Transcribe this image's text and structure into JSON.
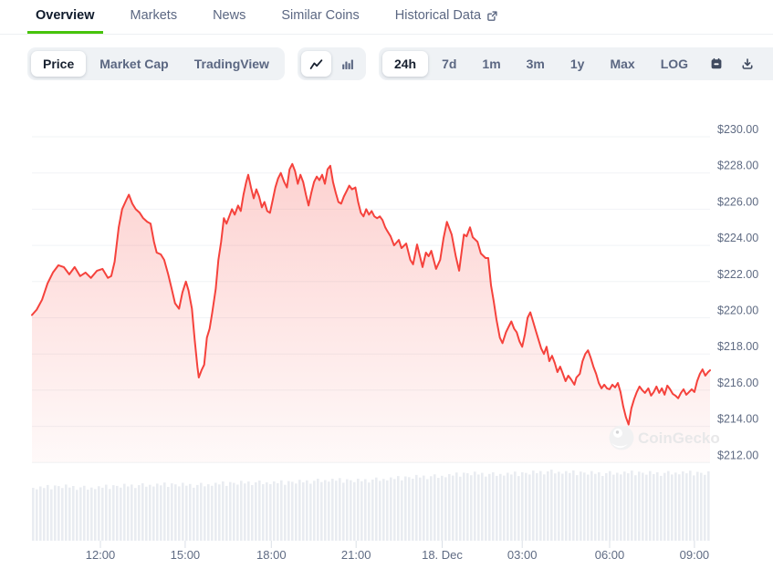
{
  "tabs": [
    {
      "label": "Overview",
      "active": true
    },
    {
      "label": "Markets"
    },
    {
      "label": "News"
    },
    {
      "label": "Similar Coins"
    },
    {
      "label": "Historical Data",
      "external_icon": "external-link-icon"
    }
  ],
  "toolbar": {
    "metric_group": [
      {
        "label": "Price",
        "selected": true
      },
      {
        "label": "Market Cap",
        "selected": false
      },
      {
        "label": "TradingView",
        "selected": false
      }
    ],
    "chart_type_group": [
      {
        "icon": "line-chart-icon",
        "selected": true
      },
      {
        "icon": "bar-chart-icon",
        "selected": false
      }
    ],
    "range_group": [
      {
        "label": "24h",
        "selected": true
      },
      {
        "label": "7d",
        "selected": false
      },
      {
        "label": "1m",
        "selected": false
      },
      {
        "label": "3m",
        "selected": false
      },
      {
        "label": "1y",
        "selected": false
      },
      {
        "label": "Max",
        "selected": false
      },
      {
        "label": "LOG",
        "selected": false
      }
    ],
    "action_icons": [
      "calendar-icon",
      "download-icon",
      "expand-icon"
    ]
  },
  "watermark": "CoinGecko",
  "colors": {
    "accent_green": "#47C30B",
    "line_red": "#F5423C",
    "muted_text": "#5B6782",
    "axis_text": "#5F6B83",
    "dark_text": "#17202F",
    "grid": "#F1F3F6",
    "volume_bar": "#E9ECF1",
    "group_bg": "#EFF2F5"
  },
  "chart_data": {
    "type": "area",
    "unit": "USD",
    "ylim": [
      212,
      230
    ],
    "grid": true,
    "y_ticks": [
      {
        "label": "$230.00",
        "value": 230
      },
      {
        "label": "$228.00",
        "value": 228
      },
      {
        "label": "$226.00",
        "value": 226
      },
      {
        "label": "$224.00",
        "value": 224
      },
      {
        "label": "$222.00",
        "value": 222
      },
      {
        "label": "$220.00",
        "value": 220
      },
      {
        "label": "$218.00",
        "value": 218
      },
      {
        "label": "$216.00",
        "value": 216
      },
      {
        "label": "$214.00",
        "value": 214
      },
      {
        "label": "$212.00",
        "value": 212
      }
    ],
    "x_ticks": [
      {
        "label": "12:00",
        "f": 0.101
      },
      {
        "label": "15:00",
        "f": 0.226
      },
      {
        "label": "18:00",
        "f": 0.353
      },
      {
        "label": "21:00",
        "f": 0.478
      },
      {
        "label": "18. Dec",
        "f": 0.605
      },
      {
        "label": "03:00",
        "f": 0.723
      },
      {
        "label": "06:00",
        "f": 0.852
      },
      {
        "label": "09:00",
        "f": 0.977
      }
    ],
    "series": [
      {
        "name": "price",
        "color": "#F5423C",
        "points": [
          [
            0.0,
            220.15
          ],
          [
            0.007,
            220.45
          ],
          [
            0.015,
            221.0
          ],
          [
            0.023,
            221.9
          ],
          [
            0.031,
            222.5
          ],
          [
            0.039,
            222.9
          ],
          [
            0.047,
            222.8
          ],
          [
            0.055,
            222.4
          ],
          [
            0.063,
            222.8
          ],
          [
            0.071,
            222.3
          ],
          [
            0.079,
            222.5
          ],
          [
            0.087,
            222.2
          ],
          [
            0.096,
            222.6
          ],
          [
            0.104,
            222.7
          ],
          [
            0.112,
            222.2
          ],
          [
            0.117,
            222.3
          ],
          [
            0.122,
            223.1
          ],
          [
            0.128,
            225.0
          ],
          [
            0.133,
            226.0
          ],
          [
            0.139,
            226.5
          ],
          [
            0.143,
            226.8
          ],
          [
            0.148,
            226.3
          ],
          [
            0.153,
            226.0
          ],
          [
            0.159,
            225.8
          ],
          [
            0.164,
            225.5
          ],
          [
            0.17,
            225.3
          ],
          [
            0.175,
            225.2
          ],
          [
            0.18,
            224.2
          ],
          [
            0.184,
            223.6
          ],
          [
            0.19,
            223.5
          ],
          [
            0.195,
            223.2
          ],
          [
            0.201,
            222.4
          ],
          [
            0.206,
            221.6
          ],
          [
            0.211,
            220.8
          ],
          [
            0.217,
            220.5
          ],
          [
            0.222,
            221.4
          ],
          [
            0.227,
            222.0
          ],
          [
            0.231,
            221.5
          ],
          [
            0.236,
            220.5
          ],
          [
            0.24,
            218.8
          ],
          [
            0.244,
            217.3
          ],
          [
            0.246,
            216.7
          ],
          [
            0.25,
            217.1
          ],
          [
            0.254,
            217.4
          ],
          [
            0.258,
            218.9
          ],
          [
            0.262,
            219.4
          ],
          [
            0.266,
            220.3
          ],
          [
            0.271,
            221.6
          ],
          [
            0.275,
            223.2
          ],
          [
            0.279,
            224.2
          ],
          [
            0.283,
            225.5
          ],
          [
            0.287,
            225.2
          ],
          [
            0.291,
            225.6
          ],
          [
            0.295,
            226.0
          ],
          [
            0.299,
            225.7
          ],
          [
            0.304,
            226.2
          ],
          [
            0.308,
            225.9
          ],
          [
            0.312,
            226.8
          ],
          [
            0.316,
            227.5
          ],
          [
            0.319,
            227.9
          ],
          [
            0.323,
            227.2
          ],
          [
            0.327,
            226.6
          ],
          [
            0.331,
            227.1
          ],
          [
            0.335,
            226.7
          ],
          [
            0.339,
            226.1
          ],
          [
            0.343,
            226.4
          ],
          [
            0.347,
            225.9
          ],
          [
            0.351,
            225.8
          ],
          [
            0.355,
            226.5
          ],
          [
            0.359,
            227.2
          ],
          [
            0.363,
            227.7
          ],
          [
            0.367,
            228.0
          ],
          [
            0.372,
            227.5
          ],
          [
            0.376,
            227.2
          ],
          [
            0.38,
            228.2
          ],
          [
            0.384,
            228.5
          ],
          [
            0.388,
            228.1
          ],
          [
            0.392,
            227.4
          ],
          [
            0.396,
            227.9
          ],
          [
            0.4,
            227.5
          ],
          [
            0.404,
            226.8
          ],
          [
            0.408,
            226.2
          ],
          [
            0.412,
            226.9
          ],
          [
            0.416,
            227.5
          ],
          [
            0.42,
            227.8
          ],
          [
            0.424,
            227.6
          ],
          [
            0.428,
            227.9
          ],
          [
            0.432,
            227.4
          ],
          [
            0.436,
            228.2
          ],
          [
            0.44,
            228.4
          ],
          [
            0.444,
            227.5
          ],
          [
            0.448,
            226.9
          ],
          [
            0.452,
            226.4
          ],
          [
            0.456,
            226.3
          ],
          [
            0.46,
            226.7
          ],
          [
            0.464,
            227.0
          ],
          [
            0.468,
            227.3
          ],
          [
            0.472,
            227.1
          ],
          [
            0.477,
            227.2
          ],
          [
            0.481,
            226.4
          ],
          [
            0.485,
            225.8
          ],
          [
            0.489,
            225.6
          ],
          [
            0.493,
            226.0
          ],
          [
            0.497,
            225.7
          ],
          [
            0.501,
            225.9
          ],
          [
            0.505,
            225.6
          ],
          [
            0.509,
            225.5
          ],
          [
            0.513,
            225.6
          ],
          [
            0.517,
            225.4
          ],
          [
            0.521,
            225.0
          ],
          [
            0.524,
            224.8
          ],
          [
            0.529,
            224.5
          ],
          [
            0.534,
            224.0
          ],
          [
            0.541,
            224.3
          ],
          [
            0.545,
            223.85
          ],
          [
            0.552,
            224.1
          ],
          [
            0.558,
            223.2
          ],
          [
            0.562,
            222.95
          ],
          [
            0.568,
            224.05
          ],
          [
            0.576,
            222.8
          ],
          [
            0.581,
            223.6
          ],
          [
            0.585,
            223.4
          ],
          [
            0.589,
            223.7
          ],
          [
            0.596,
            222.7
          ],
          [
            0.602,
            223.2
          ],
          [
            0.607,
            224.4
          ],
          [
            0.612,
            225.3
          ],
          [
            0.619,
            224.6
          ],
          [
            0.625,
            223.4
          ],
          [
            0.63,
            222.6
          ],
          [
            0.637,
            224.6
          ],
          [
            0.641,
            224.5
          ],
          [
            0.646,
            225.0
          ],
          [
            0.65,
            224.45
          ],
          [
            0.657,
            224.2
          ],
          [
            0.662,
            223.55
          ],
          [
            0.669,
            223.3
          ],
          [
            0.673,
            223.3
          ],
          [
            0.677,
            221.8
          ],
          [
            0.681,
            220.9
          ],
          [
            0.685,
            219.9
          ],
          [
            0.69,
            218.9
          ],
          [
            0.694,
            218.6
          ],
          [
            0.699,
            219.2
          ],
          [
            0.703,
            219.5
          ],
          [
            0.707,
            219.8
          ],
          [
            0.711,
            219.4
          ],
          [
            0.715,
            219.2
          ],
          [
            0.719,
            218.7
          ],
          [
            0.723,
            218.4
          ],
          [
            0.727,
            219.1
          ],
          [
            0.731,
            220.0
          ],
          [
            0.735,
            220.3
          ],
          [
            0.739,
            219.8
          ],
          [
            0.743,
            219.3
          ],
          [
            0.747,
            218.8
          ],
          [
            0.751,
            218.3
          ],
          [
            0.755,
            218.0
          ],
          [
            0.759,
            218.4
          ],
          [
            0.763,
            217.6
          ],
          [
            0.767,
            217.9
          ],
          [
            0.771,
            217.5
          ],
          [
            0.775,
            217.0
          ],
          [
            0.779,
            217.3
          ],
          [
            0.783,
            216.9
          ],
          [
            0.787,
            216.5
          ],
          [
            0.791,
            216.8
          ],
          [
            0.795,
            216.6
          ],
          [
            0.8,
            216.3
          ],
          [
            0.803,
            216.7
          ],
          [
            0.808,
            216.9
          ],
          [
            0.812,
            217.6
          ],
          [
            0.816,
            218.0
          ],
          [
            0.82,
            218.2
          ],
          [
            0.824,
            217.8
          ],
          [
            0.828,
            217.3
          ],
          [
            0.832,
            216.9
          ],
          [
            0.836,
            216.4
          ],
          [
            0.84,
            216.1
          ],
          [
            0.844,
            216.3
          ],
          [
            0.848,
            216.1
          ],
          [
            0.852,
            216.05
          ],
          [
            0.856,
            216.3
          ],
          [
            0.86,
            216.15
          ],
          [
            0.864,
            216.4
          ],
          [
            0.868,
            215.9
          ],
          [
            0.872,
            215.1
          ],
          [
            0.876,
            214.5
          ],
          [
            0.88,
            214.1
          ],
          [
            0.884,
            215.0
          ],
          [
            0.888,
            215.5
          ],
          [
            0.892,
            215.9
          ],
          [
            0.896,
            216.2
          ],
          [
            0.9,
            216.0
          ],
          [
            0.904,
            215.85
          ],
          [
            0.909,
            216.1
          ],
          [
            0.913,
            215.7
          ],
          [
            0.917,
            215.9
          ],
          [
            0.921,
            216.2
          ],
          [
            0.925,
            215.85
          ],
          [
            0.929,
            216.1
          ],
          [
            0.933,
            215.75
          ],
          [
            0.937,
            216.25
          ],
          [
            0.941,
            216.05
          ],
          [
            0.945,
            215.8
          ],
          [
            0.949,
            215.7
          ],
          [
            0.953,
            215.55
          ],
          [
            0.957,
            215.85
          ],
          [
            0.961,
            216.05
          ],
          [
            0.965,
            215.75
          ],
          [
            0.969,
            215.9
          ],
          [
            0.973,
            216.05
          ],
          [
            0.977,
            215.9
          ],
          [
            0.981,
            216.5
          ],
          [
            0.985,
            216.9
          ],
          [
            0.989,
            217.15
          ],
          [
            0.993,
            216.8
          ],
          [
            0.997,
            217.0
          ],
          [
            1.0,
            217.1
          ]
        ]
      }
    ],
    "volume": {
      "color": "#E9ECF1",
      "envelope": [
        [
          0,
          58
        ],
        [
          0.04,
          60
        ],
        [
          0.08,
          58
        ],
        [
          0.12,
          60
        ],
        [
          0.16,
          61
        ],
        [
          0.2,
          62
        ],
        [
          0.24,
          61
        ],
        [
          0.28,
          63
        ],
        [
          0.32,
          64
        ],
        [
          0.36,
          64
        ],
        [
          0.4,
          65
        ],
        [
          0.44,
          67
        ],
        [
          0.48,
          66
        ],
        [
          0.52,
          68
        ],
        [
          0.56,
          70
        ],
        [
          0.6,
          71
        ],
        [
          0.64,
          74
        ],
        [
          0.68,
          73
        ],
        [
          0.72,
          74
        ],
        [
          0.76,
          76
        ],
        [
          0.8,
          75
        ],
        [
          0.84,
          74
        ],
        [
          0.88,
          75
        ],
        [
          0.92,
          74
        ],
        [
          0.96,
          75
        ],
        [
          1,
          74
        ]
      ],
      "jitter": [
        0,
        -2,
        1,
        -1,
        2,
        -3,
        1,
        0,
        -2,
        2,
        -1,
        1,
        -3,
        0,
        2,
        -2
      ]
    }
  }
}
